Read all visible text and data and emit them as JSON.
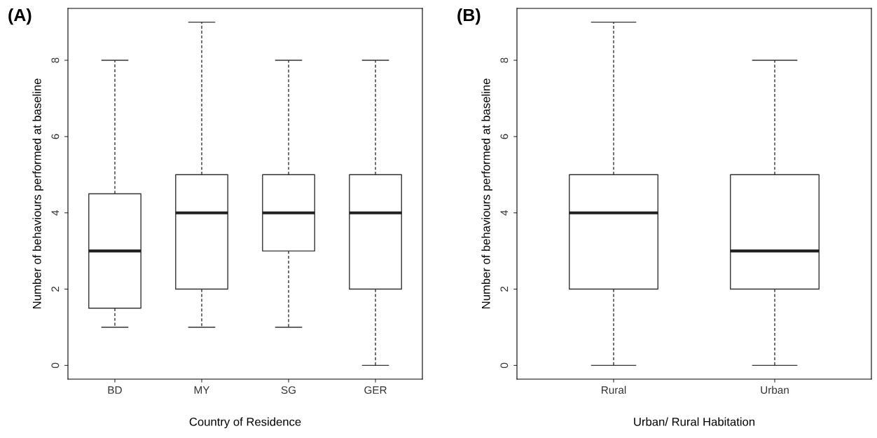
{
  "chart_data": [
    {
      "type": "box",
      "title": "(A)",
      "xlabel": "Country of Residence",
      "ylabel": "Number of behaviours performed at baseline",
      "categories": [
        "BD",
        "MY",
        "SG",
        "GER"
      ],
      "boxes": [
        {
          "low": 1,
          "q1": 1.5,
          "median": 3,
          "q3": 4.5,
          "high": 8
        },
        {
          "low": 1,
          "q1": 2,
          "median": 4,
          "q3": 5,
          "high": 9
        },
        {
          "low": 1,
          "q1": 3,
          "median": 4,
          "q3": 5,
          "high": 8
        },
        {
          "low": 0,
          "q1": 2,
          "median": 4,
          "q3": 5,
          "high": 8
        }
      ],
      "ylim": [
        -0.36,
        9.36
      ],
      "yticks": [
        0,
        2,
        4,
        6,
        8
      ],
      "grid": false,
      "legend": false
    },
    {
      "type": "box",
      "title": "(B)",
      "xlabel": "Urban/ Rural Habitation",
      "ylabel": "Number of behaviours performed at baseline",
      "categories": [
        "Rural",
        "Urban"
      ],
      "boxes": [
        {
          "low": 0,
          "q1": 2,
          "median": 4,
          "q3": 5,
          "high": 9
        },
        {
          "low": 0,
          "q1": 2,
          "median": 3,
          "q3": 5,
          "high": 8
        }
      ],
      "ylim": [
        -0.36,
        9.36
      ],
      "yticks": [
        0,
        2,
        4,
        6,
        8
      ],
      "grid": false,
      "legend": false
    }
  ]
}
